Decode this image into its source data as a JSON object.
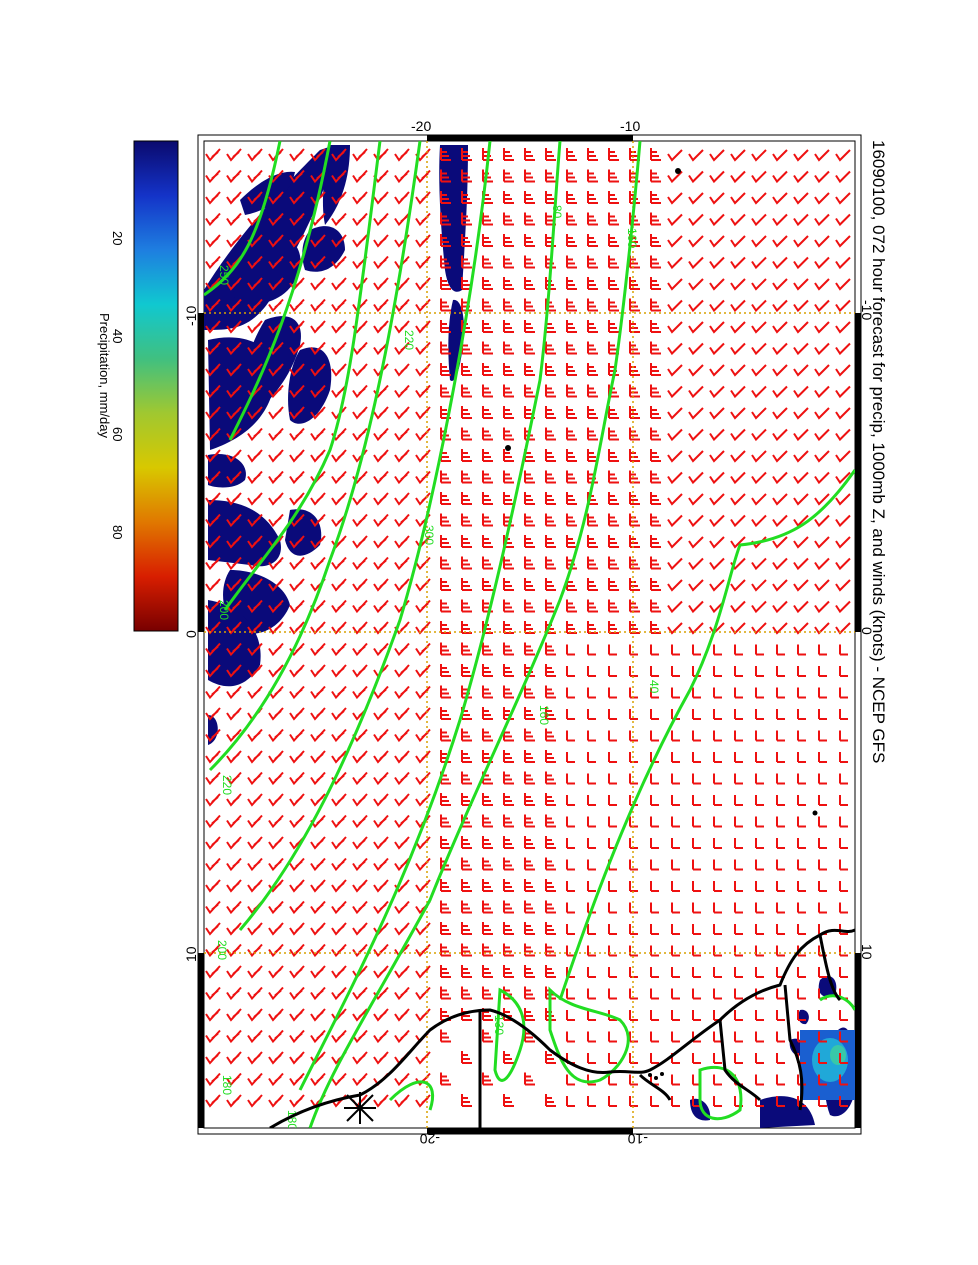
{
  "title": "16090100, 072 hour forecast for precip, 1000mb Z, and winds (knots) - NCEP GFS",
  "colorbar": {
    "label": "Precipitation, mm/day",
    "ticks": [
      "20",
      "40",
      "60",
      "80"
    ],
    "tick_values": [
      20,
      40,
      60,
      80
    ],
    "range": [
      0,
      100
    ],
    "colors": [
      "#0a0a6e",
      "#1433c8",
      "#1e7ee0",
      "#10c8d0",
      "#40c080",
      "#a0c830",
      "#d8c800",
      "#e07800",
      "#d81e00",
      "#780000"
    ]
  },
  "map": {
    "lon_ticks_top": [
      "-10",
      "0",
      "10"
    ],
    "lon_ticks_bottom": [
      "-10",
      "0",
      "10"
    ],
    "lat_ticks_right": [
      "-20",
      "-10"
    ],
    "lat_ticks_left": [
      "-20",
      "-10"
    ],
    "lon_range": [
      -20,
      20
    ],
    "lat_range": [
      -25,
      -5
    ],
    "grid_color": "#d8a000",
    "contour_color": "#22dd22",
    "barb_color": "#ee1111",
    "coast_color": "#000000",
    "precip_color": "#0a0a7a",
    "contour_labels": [
      "80",
      "160",
      "220",
      "300",
      "160",
      "40",
      "130",
      "220",
      "200",
      "180",
      "250",
      "200",
      "180"
    ]
  }
}
